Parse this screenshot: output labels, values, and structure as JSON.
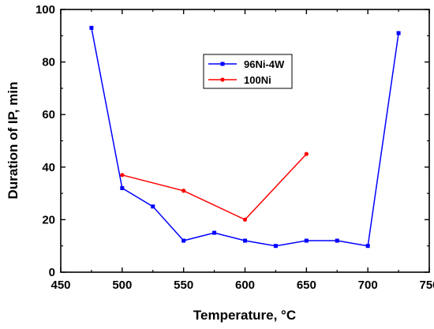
{
  "chart_data": {
    "type": "line",
    "title": "",
    "xlabel": "Temperature, °C",
    "ylabel": "Duration of IP, min",
    "xlim": [
      450,
      750
    ],
    "ylim": [
      0,
      100
    ],
    "x_ticks": [
      450,
      500,
      550,
      600,
      650,
      700,
      750
    ],
    "y_ticks": [
      0,
      20,
      40,
      60,
      80,
      100
    ],
    "grid": false,
    "legend_position": "top-center",
    "series": [
      {
        "name": "96Ni-4W",
        "color": "#0000ff",
        "marker": "square",
        "x": [
          475,
          500,
          525,
          550,
          575,
          600,
          625,
          650,
          675,
          700,
          725
        ],
        "y": [
          93,
          32,
          25,
          12,
          15,
          12,
          10,
          12,
          12,
          10,
          91
        ]
      },
      {
        "name": "100Ni",
        "color": "#ff0000",
        "marker": "circle",
        "x": [
          500,
          550,
          600,
          650
        ],
        "y": [
          37,
          31,
          20,
          45
        ]
      }
    ]
  }
}
